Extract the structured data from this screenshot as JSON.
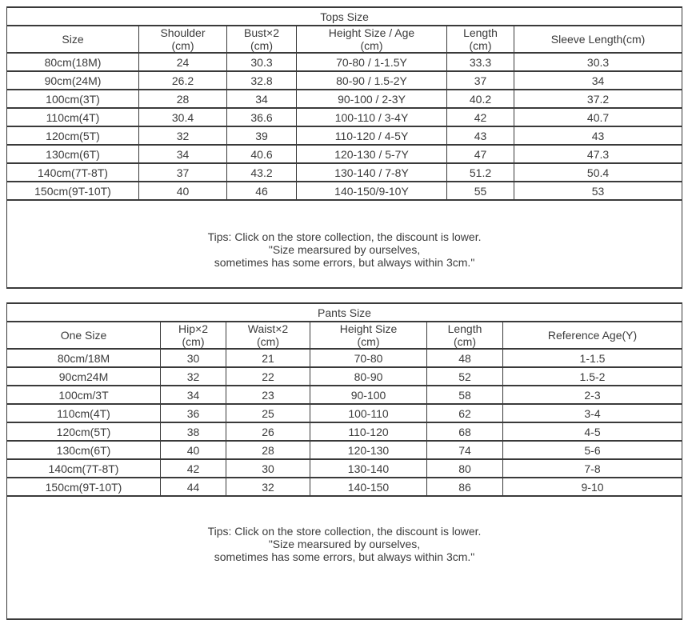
{
  "meta": {
    "background": "#ffffff",
    "border_color": "#3a3a3a",
    "text_color": "#3b3b3b"
  },
  "tops": {
    "title": "Tops Size",
    "columns": [
      {
        "label": "Size",
        "sub": ""
      },
      {
        "label": "Shoulder",
        "sub": "(cm)"
      },
      {
        "label": "Bust×2",
        "sub": "(cm)"
      },
      {
        "label": "Height Size / Age",
        "sub": "(cm)"
      },
      {
        "label": "Length",
        "sub": "(cm)"
      },
      {
        "label": "Sleeve Length(cm)",
        "sub": ""
      }
    ],
    "rows": [
      [
        "80cm(18M)",
        "24",
        "30.3",
        "70-80 / 1-1.5Y",
        "33.3",
        "30.3"
      ],
      [
        "90cm(24M)",
        "26.2",
        "32.8",
        "80-90 / 1.5-2Y",
        "37",
        "34"
      ],
      [
        "100cm(3T)",
        "28",
        "34",
        "90-100 / 2-3Y",
        "40.2",
        "37.2"
      ],
      [
        "110cm(4T)",
        "30.4",
        "36.6",
        "100-110 / 3-4Y",
        "42",
        "40.7"
      ],
      [
        "120cm(5T)",
        "32",
        "39",
        "110-120 / 4-5Y",
        "43",
        "43"
      ],
      [
        "130cm(6T)",
        "34",
        "40.6",
        "120-130 / 5-7Y",
        "47",
        "47.3"
      ],
      [
        "140cm(7T-8T)",
        "37",
        "43.2",
        "130-140 / 7-8Y",
        "51.2",
        "50.4"
      ],
      [
        "150cm(9T-10T)",
        "40",
        "46",
        "140-150/9-10Y",
        "55",
        "53"
      ]
    ],
    "tips_lines": [
      "Tips: Click on the store collection, the discount is lower.",
      "\"Size mearsured by ourselves,",
      "sometimes has some errors, but always within 3cm.\""
    ]
  },
  "pants": {
    "title": "Pants Size",
    "columns": [
      {
        "label": "One Size",
        "sub": ""
      },
      {
        "label": "Hip×2",
        "sub": "(cm)"
      },
      {
        "label": "Waist×2",
        "sub": "(cm)"
      },
      {
        "label": "Height Size",
        "sub": "(cm)"
      },
      {
        "label": "Length",
        "sub": "(cm)"
      },
      {
        "label": "Reference Age(Y)",
        "sub": ""
      }
    ],
    "rows": [
      [
        "80cm/18M",
        "30",
        "21",
        "70-80",
        "48",
        "1-1.5"
      ],
      [
        "90cm24M",
        "32",
        "22",
        "80-90",
        "52",
        "1.5-2"
      ],
      [
        "100cm/3T",
        "34",
        "23",
        "90-100",
        "58",
        "2-3"
      ],
      [
        "110cm(4T)",
        "36",
        "25",
        "100-110",
        "62",
        "3-4"
      ],
      [
        "120cm(5T)",
        "38",
        "26",
        "110-120",
        "68",
        "4-5"
      ],
      [
        "130cm(6T)",
        "40",
        "28",
        "120-130",
        "74",
        "5-6"
      ],
      [
        "140cm(7T-8T)",
        "42",
        "30",
        "130-140",
        "80",
        "7-8"
      ],
      [
        "150cm(9T-10T)",
        "44",
        "32",
        "140-150",
        "86",
        "9-10"
      ]
    ],
    "tips_lines": [
      "Tips: Click on the store collection, the discount is lower.",
      "\"Size mearsured by ourselves,",
      "sometimes has some errors, but always within 3cm.\""
    ]
  }
}
